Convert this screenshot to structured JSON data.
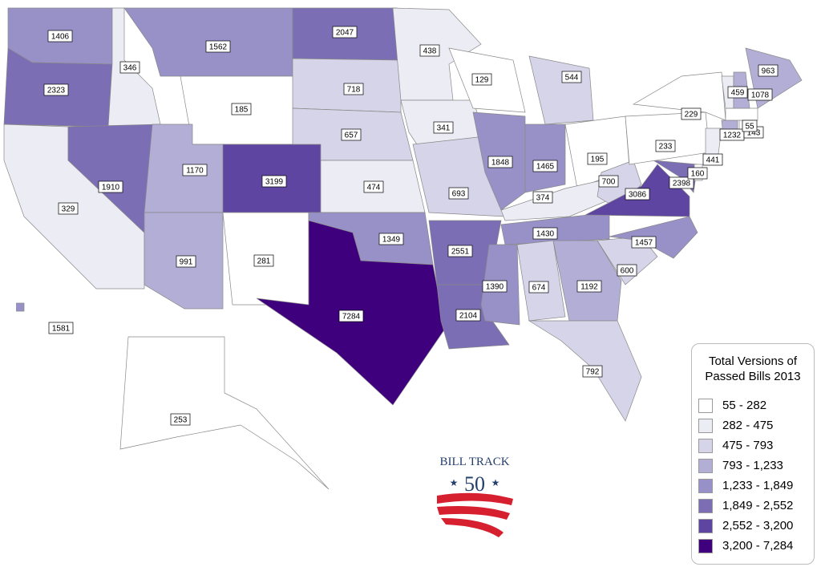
{
  "map": {
    "states": [
      1406,
      2323,
      329,
      346,
      1910,
      1562,
      185,
      1170,
      991,
      3199,
      281,
      2047,
      718,
      657,
      474,
      1349,
      7284,
      438,
      341,
      693,
      2551,
      2104,
      129,
      1848,
      544,
      1465,
      195,
      374,
      1430,
      1390,
      674,
      1192,
      792,
      600,
      1457,
      700,
      3086,
      2398,
      160,
      233,
      229,
      441,
      1232,
      143,
      55,
      459,
      1078,
      963,
      253,
      1581
    ],
    "legend": {
      "title": "Total Versions of Passed Bills 2013",
      "items": [
        {
          "from": 55,
          "to": 282,
          "label": "55 - 282",
          "color": "#ffffff"
        },
        {
          "from": 282,
          "to": 475,
          "label": "282 - 475",
          "color": "#ececf5"
        },
        {
          "from": 475,
          "to": 793,
          "label": "475 - 793",
          "color": "#d5d4e9"
        },
        {
          "from": 793,
          "to": 1233,
          "label": "793 - 1,233",
          "color": "#b2aed6"
        },
        {
          "from": 1233,
          "to": 1849,
          "label": "1,233 - 1,849",
          "color": "#9891c7"
        },
        {
          "from": 1849,
          "to": 2552,
          "label": "1,849 - 2,552",
          "color": "#7b6eb5"
        },
        {
          "from": 2552,
          "to": 3200,
          "label": "2,552 - 3,200",
          "color": "#5d45a1"
        },
        {
          "from": 3200,
          "to": 7284,
          "label": "3,200 - 7,284",
          "color": "#3f007d"
        }
      ]
    },
    "logo": {
      "name": "BILL TRACK",
      "number": "50"
    }
  }
}
